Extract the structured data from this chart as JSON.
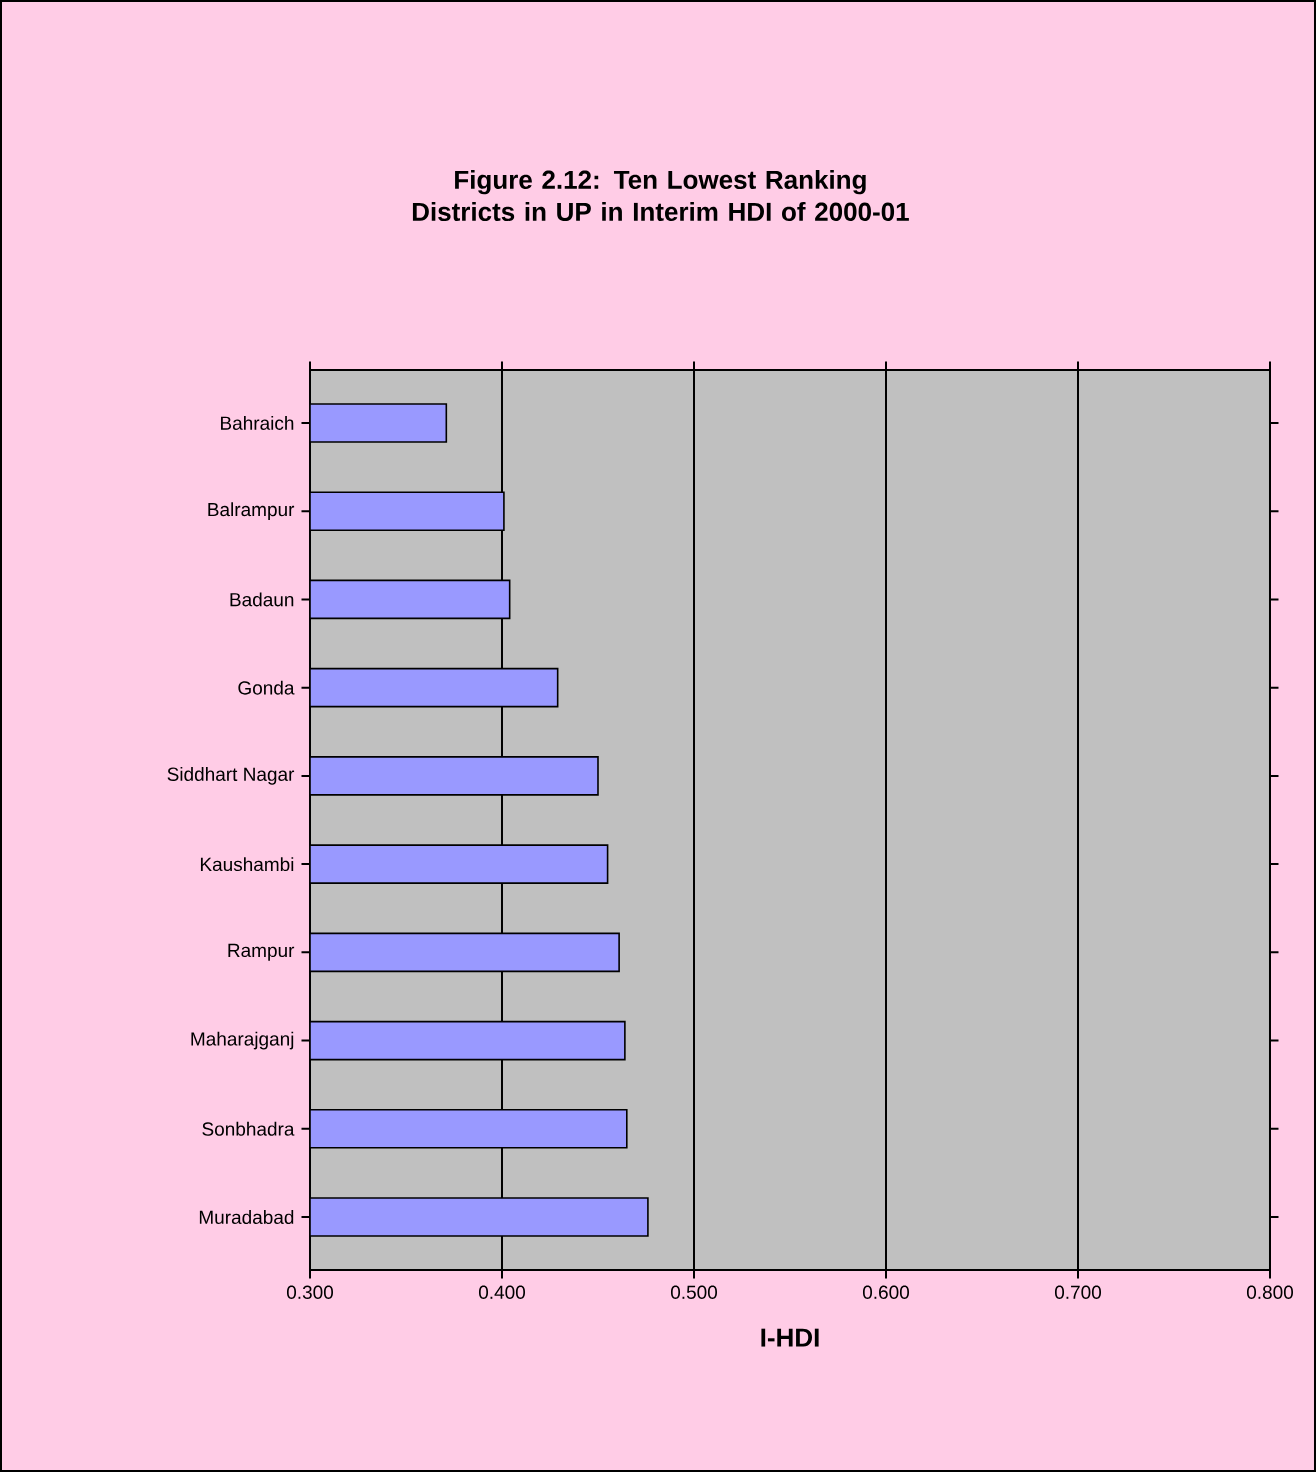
{
  "chart_data": {
    "type": "bar",
    "orientation": "horizontal",
    "title": "Figure 2.12: Ten Lowest Ranking Districts in UP in Interim HDI of 2000-01",
    "xlabel": "I-HDI",
    "categories": [
      "Bahraich",
      "Balrampur",
      "Badaun",
      "Gonda",
      "Siddhart Nagar",
      "Kaushambi",
      "Rampur",
      "Maharajganj",
      "Sonbhadra",
      "Muradabad"
    ],
    "values": [
      0.371,
      0.401,
      0.404,
      0.429,
      0.45,
      0.455,
      0.461,
      0.464,
      0.465,
      0.476
    ],
    "color": "#9999ff",
    "xlim": [
      0.3,
      0.8
    ],
    "xticks": [
      {
        "value": 0.3,
        "label": "0.300"
      },
      {
        "value": 0.4,
        "label": "0.400"
      },
      {
        "value": 0.5,
        "label": "0.500"
      },
      {
        "value": 0.6,
        "label": "0.600"
      },
      {
        "value": 0.7,
        "label": "0.700"
      },
      {
        "value": 0.8,
        "label": "0.800"
      }
    ],
    "grid": "x"
  }
}
